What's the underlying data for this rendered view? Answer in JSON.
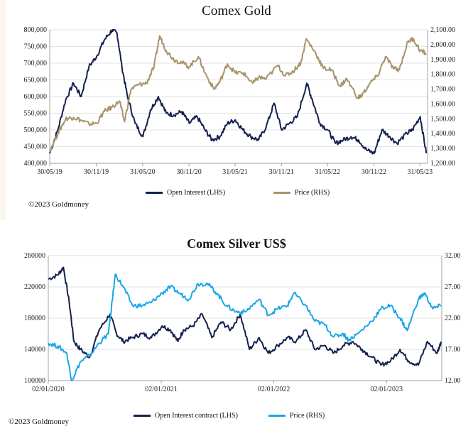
{
  "colors": {
    "open_interest": "#14204f",
    "gold_price": "#a8946a",
    "silver_price": "#1aa6e6",
    "grid": "#d8d8d8"
  },
  "chart_data": [
    {
      "type": "line",
      "title": "Comex Gold",
      "copyright": "©2023 Goldmoney",
      "x_ticks": [
        "30/05/19",
        "30/11/19",
        "31/05/20",
        "30/11/20",
        "31/05/21",
        "30/11/21",
        "31/05/22",
        "30/11/22",
        "31/05/23"
      ],
      "x_range": [
        "2019-05-30",
        "2023-06-30"
      ],
      "left_axis": {
        "ylim": [
          400000,
          800000
        ],
        "ticks": [
          "400,000",
          "450,000",
          "500,000",
          "550,000",
          "600,000",
          "650,000",
          "700,000",
          "750,000",
          "800,000"
        ]
      },
      "right_axis": {
        "ylim": [
          1200,
          2100
        ],
        "ticks": [
          "1,200.00",
          "1,300.00",
          "1,400.00",
          "1,500.00",
          "1,600.00",
          "1,700.00",
          "1,800.00",
          "1,900.00",
          "2,000.00",
          "2,100.00"
        ]
      },
      "series": [
        {
          "name": "Open Interest (LHS)",
          "axis": "left",
          "x": [
            "2019-05-30",
            "2019-07-01",
            "2019-08-01",
            "2019-09-01",
            "2019-10-01",
            "2019-11-01",
            "2019-12-01",
            "2020-01-01",
            "2020-02-01",
            "2020-02-20",
            "2020-03-10",
            "2020-04-01",
            "2020-05-01",
            "2020-06-01",
            "2020-07-01",
            "2020-08-01",
            "2020-09-01",
            "2020-10-01",
            "2020-11-01",
            "2020-12-01",
            "2021-01-01",
            "2021-02-01",
            "2021-03-01",
            "2021-04-01",
            "2021-05-01",
            "2021-06-01",
            "2021-07-01",
            "2021-08-01",
            "2021-09-01",
            "2021-10-01",
            "2021-11-01",
            "2021-12-01",
            "2022-01-01",
            "2022-02-01",
            "2022-03-10",
            "2022-04-01",
            "2022-05-01",
            "2022-06-01",
            "2022-07-01",
            "2022-08-01",
            "2022-09-01",
            "2022-10-01",
            "2022-11-01",
            "2022-12-01",
            "2023-01-01",
            "2023-02-01",
            "2023-03-01",
            "2023-04-10",
            "2023-05-01",
            "2023-06-01",
            "2023-06-25"
          ],
          "values": [
            430000,
            500000,
            590000,
            640000,
            600000,
            690000,
            720000,
            770000,
            800000,
            790000,
            690000,
            600000,
            520000,
            480000,
            560000,
            600000,
            550000,
            545000,
            555000,
            520000,
            540000,
            500000,
            470000,
            480000,
            520000,
            530000,
            500000,
            480000,
            470000,
            510000,
            580000,
            500000,
            520000,
            540000,
            640000,
            590000,
            520000,
            500000,
            460000,
            470000,
            480000,
            470000,
            440000,
            430000,
            500000,
            480000,
            460000,
            490000,
            500000,
            540000,
            430000
          ]
        },
        {
          "name": "Price (RHS)",
          "axis": "right",
          "x": [
            "2019-05-30",
            "2019-07-01",
            "2019-08-01",
            "2019-09-01",
            "2019-10-01",
            "2019-11-01",
            "2019-12-01",
            "2020-01-01",
            "2020-02-01",
            "2020-03-01",
            "2020-03-20",
            "2020-04-15",
            "2020-05-15",
            "2020-06-15",
            "2020-07-15",
            "2020-08-06",
            "2020-09-01",
            "2020-10-01",
            "2020-11-01",
            "2020-12-01",
            "2021-01-06",
            "2021-02-01",
            "2021-03-08",
            "2021-04-01",
            "2021-05-01",
            "2021-06-01",
            "2021-07-01",
            "2021-08-10",
            "2021-09-01",
            "2021-10-01",
            "2021-11-15",
            "2021-12-15",
            "2022-01-15",
            "2022-02-15",
            "2022-03-08",
            "2022-04-15",
            "2022-05-15",
            "2022-06-15",
            "2022-07-20",
            "2022-08-15",
            "2022-09-28",
            "2022-10-15",
            "2022-11-15",
            "2022-12-15",
            "2023-01-15",
            "2023-02-15",
            "2023-03-10",
            "2023-04-13",
            "2023-05-04",
            "2023-06-01",
            "2023-06-25"
          ],
          "values": [
            1285,
            1400,
            1500,
            1510,
            1490,
            1465,
            1470,
            1550,
            1580,
            1620,
            1480,
            1700,
            1730,
            1740,
            1850,
            2060,
            1960,
            1900,
            1880,
            1850,
            1920,
            1810,
            1700,
            1750,
            1870,
            1810,
            1810,
            1740,
            1780,
            1770,
            1860,
            1790,
            1820,
            1880,
            2040,
            1940,
            1840,
            1830,
            1720,
            1770,
            1640,
            1660,
            1740,
            1790,
            1920,
            1840,
            1830,
            2020,
            2040,
            1960,
            1940
          ]
        }
      ]
    },
    {
      "type": "line",
      "title": "Comex Silver US$",
      "copyright": "©2023 Goldmoney",
      "x_ticks": [
        "02/01/2020",
        "02/01/2021",
        "02/01/2022",
        "02/01/2023"
      ],
      "x_range": [
        "2020-01-02",
        "2023-06-30"
      ],
      "left_axis": {
        "ylim": [
          100000,
          260000
        ],
        "ticks": [
          "100000",
          "140000",
          "180000",
          "220000",
          "260000"
        ]
      },
      "right_axis": {
        "ylim": [
          12,
          32
        ],
        "ticks": [
          "12.00",
          "17.00",
          "22.00",
          "27.00",
          "32.00"
        ]
      },
      "series": [
        {
          "name": "Open Interest contract (LHS)",
          "axis": "left",
          "x": [
            "2020-01-02",
            "2020-02-01",
            "2020-02-20",
            "2020-03-10",
            "2020-03-25",
            "2020-04-15",
            "2020-05-15",
            "2020-06-15",
            "2020-07-20",
            "2020-08-10",
            "2020-09-01",
            "2020-10-01",
            "2020-11-01",
            "2020-12-01",
            "2021-01-05",
            "2021-02-01",
            "2021-02-25",
            "2021-03-15",
            "2021-04-15",
            "2021-05-15",
            "2021-06-15",
            "2021-07-15",
            "2021-08-15",
            "2021-09-15",
            "2021-10-15",
            "2021-11-15",
            "2021-12-15",
            "2022-01-15",
            "2022-02-15",
            "2022-03-15",
            "2022-04-15",
            "2022-05-15",
            "2022-06-15",
            "2022-07-15",
            "2022-08-15",
            "2022-09-15",
            "2022-10-15",
            "2022-11-15",
            "2022-12-15",
            "2023-01-15",
            "2023-02-15",
            "2023-03-15",
            "2023-04-15",
            "2023-05-15",
            "2023-06-15",
            "2023-06-28"
          ],
          "values": [
            230000,
            235000,
            245000,
            200000,
            150000,
            140000,
            130000,
            165000,
            185000,
            160000,
            150000,
            155000,
            160000,
            155000,
            170000,
            165000,
            150000,
            165000,
            170000,
            185000,
            155000,
            175000,
            165000,
            185000,
            140000,
            155000,
            135000,
            145000,
            155000,
            150000,
            165000,
            140000,
            145000,
            135000,
            145000,
            150000,
            140000,
            130000,
            120000,
            125000,
            140000,
            125000,
            120000,
            150000,
            135000,
            150000
          ]
        },
        {
          "name": "Price (RHS)",
          "axis": "right",
          "x": [
            "2020-01-02",
            "2020-02-01",
            "2020-03-01",
            "2020-03-18",
            "2020-04-15",
            "2020-05-15",
            "2020-06-15",
            "2020-07-15",
            "2020-08-06",
            "2020-09-01",
            "2020-10-01",
            "2020-11-01",
            "2020-12-01",
            "2021-01-05",
            "2021-02-01",
            "2021-03-01",
            "2021-04-01",
            "2021-05-01",
            "2021-06-01",
            "2021-07-01",
            "2021-08-01",
            "2021-09-01",
            "2021-10-01",
            "2021-11-15",
            "2021-12-15",
            "2022-01-15",
            "2022-02-15",
            "2022-03-08",
            "2022-04-15",
            "2022-05-15",
            "2022-06-15",
            "2022-07-15",
            "2022-08-15",
            "2022-09-01",
            "2022-10-01",
            "2022-11-15",
            "2022-12-15",
            "2023-01-15",
            "2023-02-15",
            "2023-03-10",
            "2023-04-15",
            "2023-05-05",
            "2023-06-01",
            "2023-06-28"
          ],
          "values": [
            18,
            17.5,
            16.5,
            12,
            15,
            16,
            18,
            19.5,
            29,
            27,
            24,
            24,
            24.5,
            26,
            27,
            26,
            25,
            27.5,
            27.5,
            26,
            24,
            23,
            23,
            25,
            22.5,
            23.5,
            24,
            26,
            24,
            21.5,
            21,
            19,
            19.5,
            18.5,
            19.5,
            21.5,
            23.5,
            24,
            22,
            20,
            25,
            26,
            23.5,
            24
          ]
        }
      ]
    }
  ]
}
